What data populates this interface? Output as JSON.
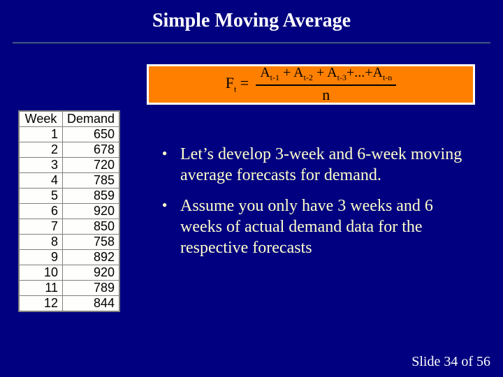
{
  "slide": {
    "title": "Simple Moving Average",
    "background_color": "#000080",
    "title_color": "#ffffff",
    "title_fontsize": 28,
    "rule_color": "#3a4a8a"
  },
  "formula": {
    "lhs": "F",
    "lhs_sub": "t",
    "eq": " = ",
    "numerator_parts": [
      "A",
      "t-1",
      " + A",
      "t-2",
      " + A",
      "t-3",
      "+...+A",
      "t-n"
    ],
    "denominator": "n",
    "box_bg": "#ff8000",
    "outer_bg": "#ffffff",
    "text_color": "#000000",
    "fontsize": 22
  },
  "table": {
    "columns": [
      "Week",
      "Demand"
    ],
    "rows": [
      [
        "1",
        "650"
      ],
      [
        "2",
        "678"
      ],
      [
        "3",
        "720"
      ],
      [
        "4",
        "785"
      ],
      [
        "5",
        "859"
      ],
      [
        "6",
        "920"
      ],
      [
        "7",
        "850"
      ],
      [
        "8",
        "758"
      ],
      [
        "9",
        "892"
      ],
      [
        "10",
        "920"
      ],
      [
        "11",
        "789"
      ],
      [
        "12",
        "844"
      ]
    ],
    "bg": "#fefefc",
    "border_color": "#808080",
    "font_family": "Arial",
    "fontsize": 18
  },
  "bullets": {
    "items": [
      "Let’s develop 3-week and 6-week moving average forecasts for demand.",
      "Assume you only have 3 weeks and 6 weeks of actual demand data for the respective forecasts"
    ],
    "color": "#ffffcc",
    "fontsize": 24
  },
  "footer": {
    "text": "Slide 34 of 56",
    "color": "#ffffff",
    "fontsize": 20
  }
}
